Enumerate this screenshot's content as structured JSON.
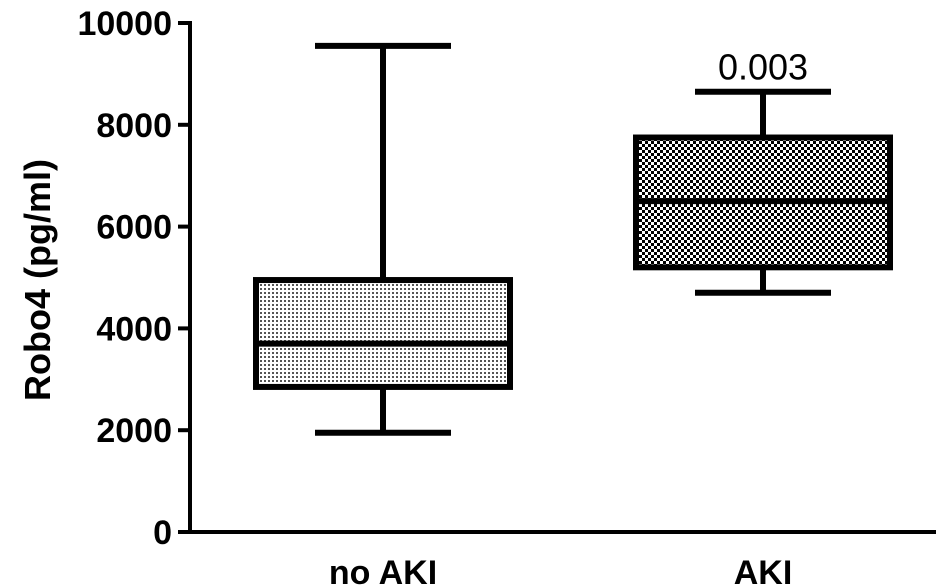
{
  "chart_data": {
    "type": "box",
    "ylabel": "Robo4 (pg/ml)",
    "ylim": [
      0,
      10000
    ],
    "yticks": [
      "0",
      "2000",
      "4000",
      "6000",
      "8000",
      "10000"
    ],
    "categories": [
      "no AKI",
      "AKI"
    ],
    "boxes": [
      {
        "category": "no AKI",
        "min": 1950,
        "q1": 2850,
        "median": 3700,
        "q3": 4950,
        "max": 9550,
        "pattern": "light-dots"
      },
      {
        "category": "AKI",
        "min": 4700,
        "q1": 5200,
        "median": 6500,
        "q3": 7750,
        "max": 8650,
        "pattern": "checker"
      }
    ],
    "annotations": [
      {
        "text": "0.003",
        "category": "AKI"
      }
    ],
    "colors": {
      "stroke": "#000000",
      "background": "#ffffff"
    }
  }
}
